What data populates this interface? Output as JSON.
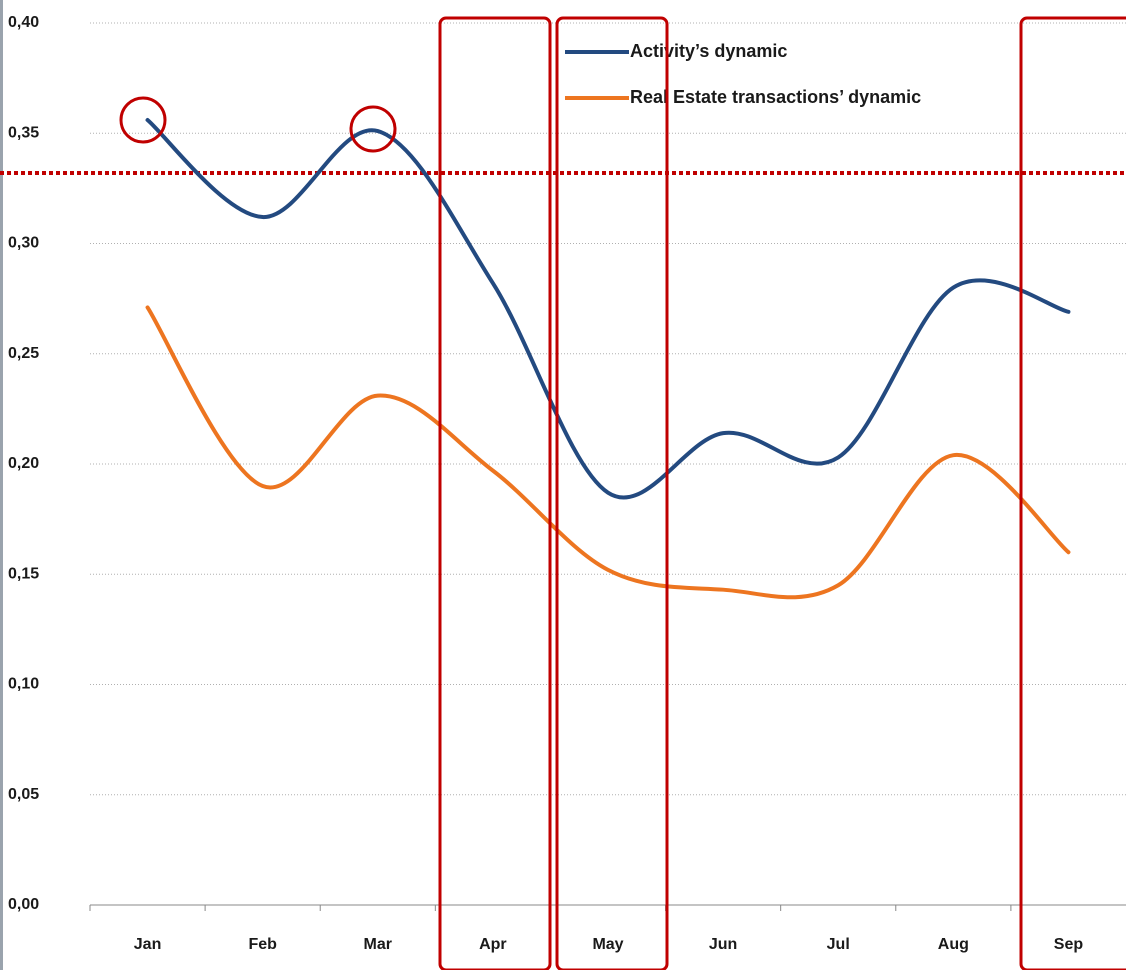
{
  "chart_data": {
    "type": "line",
    "categories": [
      "Jan",
      "Feb",
      "Mar",
      "Apr",
      "May",
      "Jun",
      "Jul",
      "Aug",
      "Sep"
    ],
    "series": [
      {
        "name": "Activity’s dynamic",
        "color": "#234a80",
        "values": [
          0.356,
          0.312,
          0.351,
          0.282,
          0.187,
          0.214,
          0.203,
          0.28,
          0.269
        ]
      },
      {
        "name": "Real Estate transactions’ dynamic",
        "color": "#ed7520",
        "values": [
          0.271,
          0.19,
          0.231,
          0.197,
          0.152,
          0.143,
          0.145,
          0.204,
          0.16
        ]
      }
    ],
    "ylim": [
      0,
      0.4
    ],
    "yticks": [
      {
        "value": 0,
        "label": "0,00"
      },
      {
        "value": 0.05,
        "label": "0,05"
      },
      {
        "value": 0.1,
        "label": "0,10"
      },
      {
        "value": 0.15,
        "label": "0,15"
      },
      {
        "value": 0.2,
        "label": "0,20"
      },
      {
        "value": 0.25,
        "label": "0,25"
      },
      {
        "value": 0.3,
        "label": "0,30"
      },
      {
        "value": 0.35,
        "label": "0,35"
      },
      {
        "value": 0.4,
        "label": "0,40"
      }
    ],
    "reference_line": {
      "value": 0.332,
      "color": "#c00000"
    },
    "grid": true,
    "smooth": true,
    "legend": "top-right"
  }
}
